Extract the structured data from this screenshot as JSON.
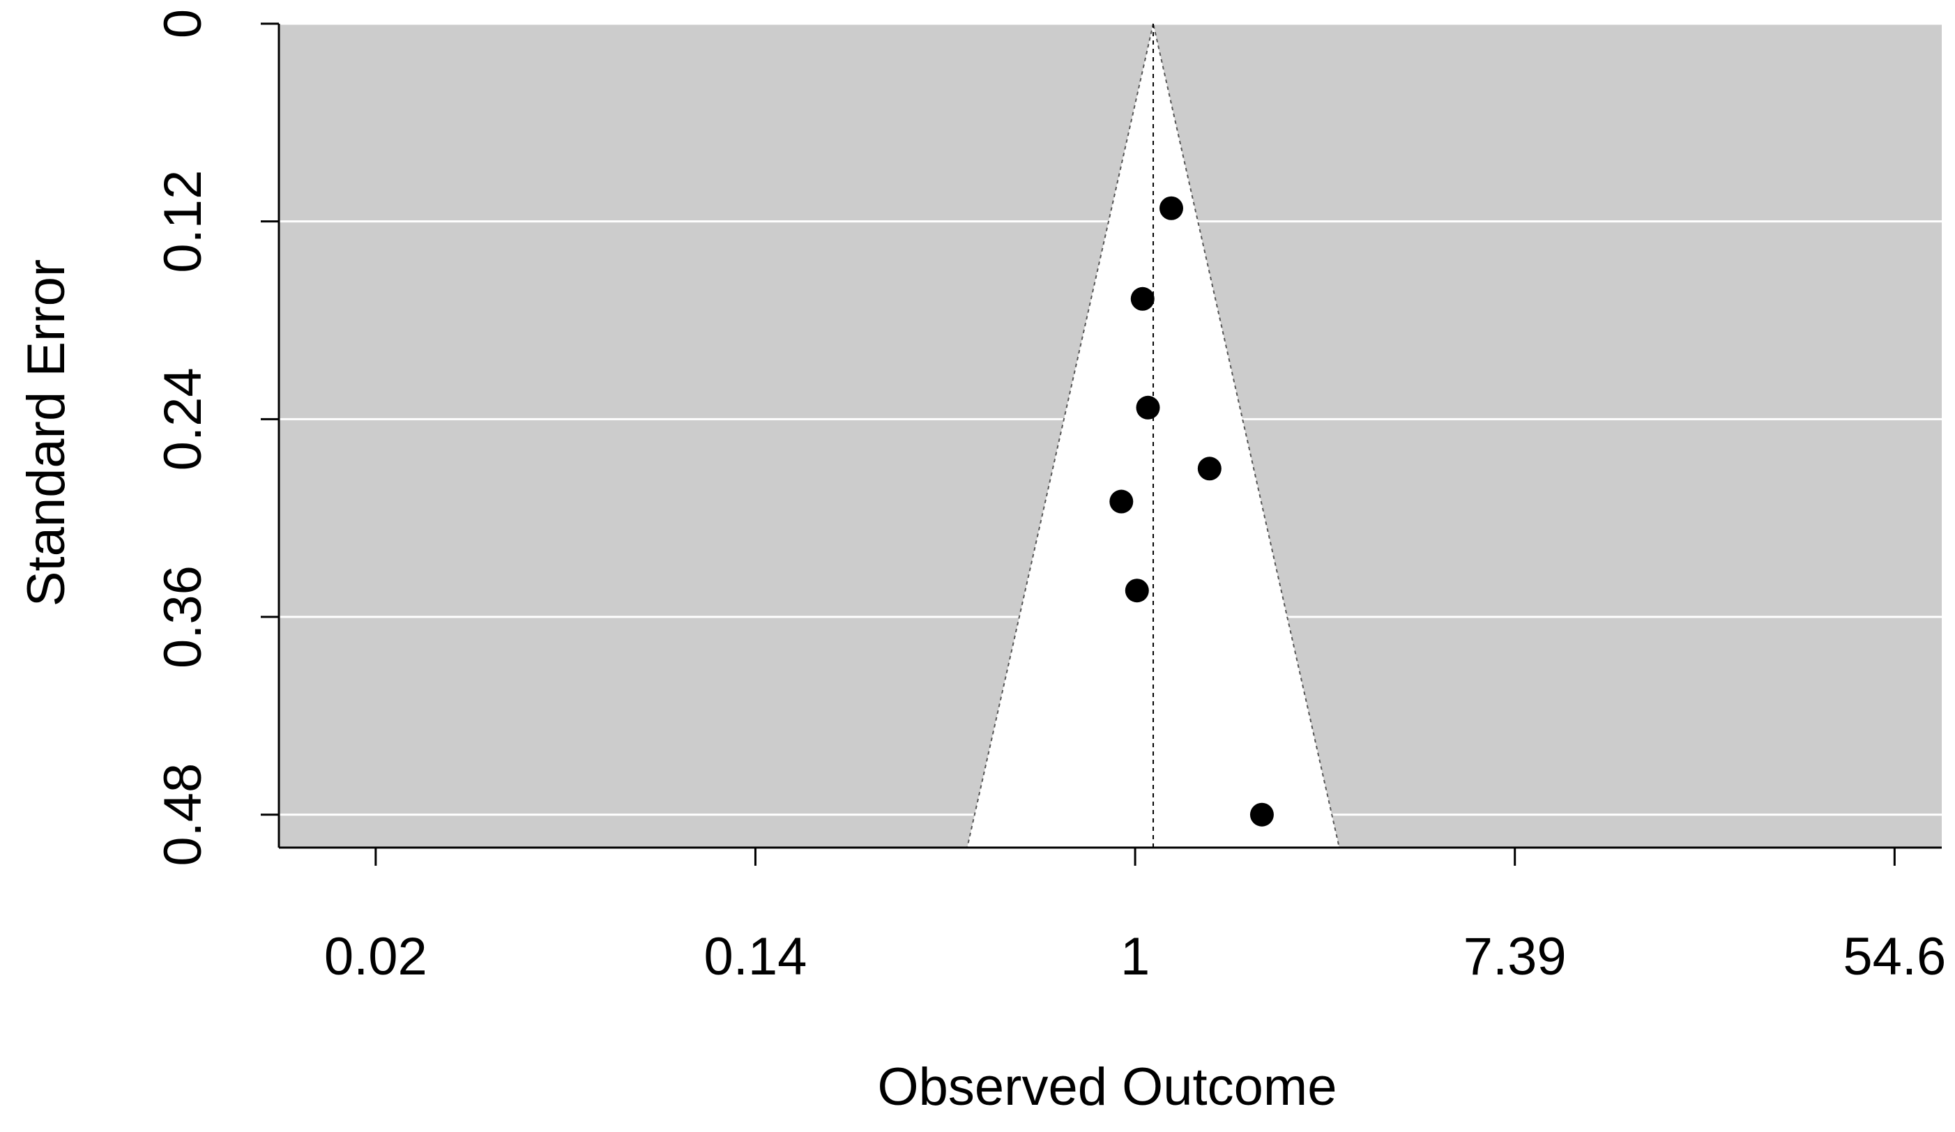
{
  "chart_data": {
    "type": "scatter",
    "subtype": "funnel-plot",
    "title": "",
    "xlabel": "Observed Outcome",
    "ylabel": "Standard Error",
    "x_scale": "log",
    "y_reversed": true,
    "xlim": [
      0.011,
      70
    ],
    "ylim": [
      0,
      0.5
    ],
    "x_ticks": [
      {
        "value": 0.018316,
        "label": "0.02"
      },
      {
        "value": 0.135335,
        "label": "0.14"
      },
      {
        "value": 1,
        "label": "1"
      },
      {
        "value": 7.389056,
        "label": "7.39"
      },
      {
        "value": 54.59815,
        "label": "54.6"
      }
    ],
    "y_ticks": [
      {
        "value": 0,
        "label": "0"
      },
      {
        "value": 0.12,
        "label": "0.12"
      },
      {
        "value": 0.24,
        "label": "0.24"
      },
      {
        "value": 0.36,
        "label": "0.36"
      },
      {
        "value": 0.48,
        "label": "0.48"
      }
    ],
    "grid": "horizontal",
    "panel_color": "#CCCCCC",
    "funnel_color": "#FFFFFF",
    "point_color": "#000000",
    "pooled_estimate": 1.1,
    "points": [
      {
        "x": 1.21,
        "y": 0.112
      },
      {
        "x": 1.04,
        "y": 0.167
      },
      {
        "x": 1.07,
        "y": 0.233
      },
      {
        "x": 1.48,
        "y": 0.27
      },
      {
        "x": 0.93,
        "y": 0.29
      },
      {
        "x": 1.01,
        "y": 0.344
      },
      {
        "x": 1.95,
        "y": 0.48
      }
    ]
  }
}
